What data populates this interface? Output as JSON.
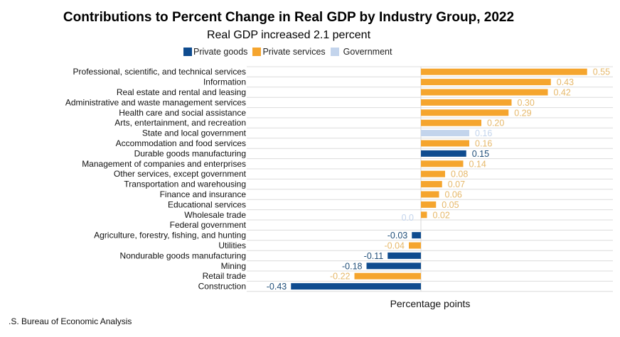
{
  "chart_data": {
    "type": "bar",
    "orientation": "horizontal",
    "title": "Contributions to Percent Change in Real GDP by Industry Group, 2022",
    "subtitle": "Real GDP increased 2.1 percent",
    "xlabel": "Percentage points",
    "ylabel": "",
    "xlim": [
      -0.43,
      0.6
    ],
    "grid": true,
    "legend_position": "top-center",
    "colors": {
      "Private goods": "#0F4C8F",
      "Private services": "#F5A52E",
      "Government": "#C3D4EC"
    },
    "label_colors": {
      "Private goods": "#1F4E79",
      "Private services": "#E6B86A",
      "Government": "#C3D4EC"
    },
    "legend": [
      "Private goods",
      "Private services",
      "Government"
    ],
    "categories": [
      "Professional, scientific, and technical services",
      "Information",
      "Real estate and rental and leasing",
      "Administrative and waste management services",
      "Health care and social assistance",
      "Arts, entertainment, and recreation",
      "State and local government",
      "Accommodation and food services",
      "Durable goods manufacturing",
      "Management of companies and enterprises",
      "Other services, except government",
      "Transportation and warehousing",
      "Finance and insurance",
      "Educational services",
      "Wholesale trade",
      "Federal government",
      "Agriculture, forestry, fishing, and hunting",
      "Utilities",
      "Nondurable goods manufacturing",
      "Mining",
      "Retail trade",
      "Construction"
    ],
    "values": [
      0.55,
      0.43,
      0.42,
      0.3,
      0.29,
      0.2,
      0.16,
      0.16,
      0.15,
      0.14,
      0.08,
      0.07,
      0.06,
      0.05,
      0.02,
      0.0,
      -0.03,
      -0.04,
      -0.11,
      -0.18,
      -0.22,
      -0.43
    ],
    "labels": [
      "0.55",
      "0.43",
      "0.42",
      "0.30",
      "0.29",
      "0.20",
      "0.16",
      "0.16",
      "0.15",
      "0.14",
      "0.08",
      "0.07",
      "0.06",
      "0.05",
      "0.02",
      "0.0",
      "-0.03",
      "-0.04",
      "-0.11",
      "-0.18",
      "-0.22",
      "-0.43"
    ],
    "groups": [
      "Private services",
      "Private services",
      "Private services",
      "Private services",
      "Private services",
      "Private services",
      "Government",
      "Private services",
      "Private goods",
      "Private services",
      "Private services",
      "Private services",
      "Private services",
      "Private services",
      "Private services",
      "Government",
      "Private goods",
      "Private services",
      "Private goods",
      "Private goods",
      "Private services",
      "Private goods"
    ]
  },
  "source": ".S. Bureau of Economic Analysis"
}
